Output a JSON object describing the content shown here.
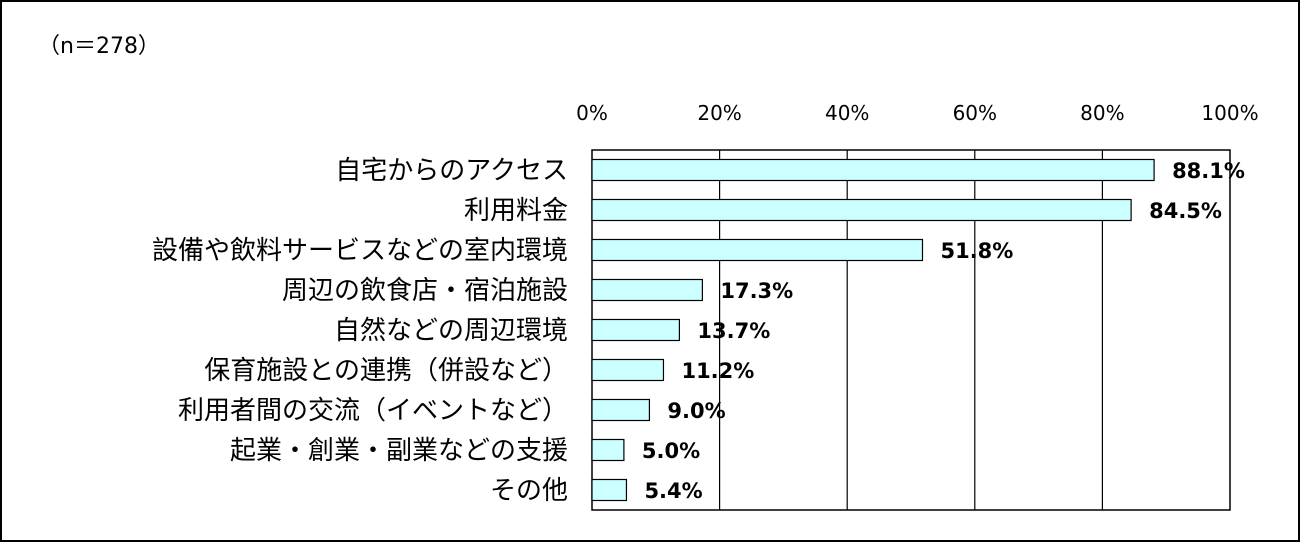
{
  "sample_note": "（n＝278）",
  "colors": {
    "bar_fill": "#ccffff",
    "bar_stroke": "#000000",
    "grid": "#000000",
    "text": "#000000"
  },
  "chart_data": {
    "type": "bar",
    "orientation": "horizontal",
    "categories": [
      "自宅からのアクセス",
      "利用料金",
      "設備や飲料サービスなどの室内環境",
      "周辺の飲食店・宿泊施設",
      "自然などの周辺環境",
      "保育施設との連携（併設など）",
      "利用者間の交流（イベントなど）",
      "起業・創業・副業などの支援",
      "その他"
    ],
    "values": [
      88.1,
      84.5,
      51.8,
      17.3,
      13.7,
      11.2,
      9.0,
      5.0,
      5.4
    ],
    "value_labels": [
      "88.1%",
      "84.5%",
      "51.8%",
      "17.3%",
      "13.7%",
      "11.2%",
      "9.0%",
      "5.0%",
      "5.4%"
    ],
    "xlim": [
      0,
      100
    ],
    "xticks": [
      0,
      20,
      40,
      60,
      80,
      100
    ],
    "xtick_labels": [
      "0%",
      "20%",
      "40%",
      "60%",
      "80%",
      "100%"
    ],
    "grid": true,
    "title": "",
    "xlabel": "",
    "ylabel": ""
  }
}
